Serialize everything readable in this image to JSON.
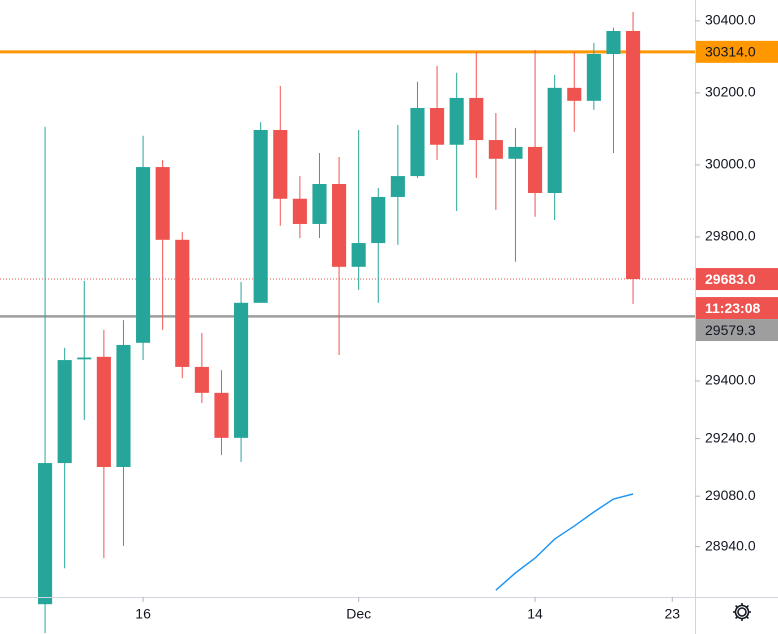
{
  "chart_data": {
    "type": "candlestick",
    "up_color": "#26a69a",
    "down_color": "#ef5350",
    "xlim": [
      -2.3,
      33.16
    ],
    "xticks": [
      {
        "value": 5,
        "label": "16"
      },
      {
        "value": 16,
        "label": "Dec"
      },
      {
        "value": 25,
        "label": "14"
      },
      {
        "value": 32,
        "label": "23"
      }
    ],
    "ylim": [
      28800,
      30458
    ],
    "yticks": [
      {
        "value": 30400,
        "label": "30400.0"
      },
      {
        "value": 30200,
        "label": "30200.0"
      },
      {
        "value": 30000,
        "label": "30000.0"
      },
      {
        "value": 29800,
        "label": "29800.0"
      },
      {
        "value": 29400,
        "label": "29400.0"
      },
      {
        "value": 29240,
        "label": "29240.0"
      },
      {
        "value": 29080,
        "label": "29080.0"
      },
      {
        "value": 28940,
        "label": "28940.0"
      }
    ],
    "open": [
      28780,
      29172,
      29460,
      29467,
      29161,
      29506,
      29994,
      29792,
      29439,
      29367,
      29242,
      29617,
      30097,
      29906,
      29836,
      29947,
      29717,
      29783,
      29911,
      29969,
      30158,
      30056,
      30186,
      30069,
      30017,
      30050,
      29922,
      30214,
      30178,
      30308,
      30372
    ],
    "high": [
      30106,
      29492,
      29678,
      29542,
      29569,
      30081,
      30014,
      29814,
      29533,
      29430,
      29675,
      30119,
      30219,
      29969,
      30033,
      30022,
      30097,
      29936,
      30111,
      30231,
      30275,
      30256,
      30314,
      30144,
      30103,
      30319,
      30250,
      30314,
      30339,
      30381,
      30425
    ],
    "low": [
      28700,
      28880,
      29292,
      28908,
      28942,
      29458,
      29542,
      29408,
      29339,
      29194,
      29175,
      29617,
      29831,
      29797,
      29797,
      29472,
      29653,
      29617,
      29778,
      29964,
      30014,
      29872,
      29964,
      29875,
      29731,
      29856,
      29847,
      30092,
      30153,
      30033,
      29614
    ],
    "close": [
      29172,
      29458,
      29465,
      29161,
      29500,
      29994,
      29792,
      29439,
      29367,
      29242,
      29617,
      30097,
      29906,
      29836,
      29947,
      29717,
      29783,
      29911,
      29969,
      30158,
      30056,
      30186,
      30069,
      30017,
      30050,
      29922,
      30214,
      30178,
      30308,
      30372,
      29683
    ],
    "line": {
      "color": "#2196f3",
      "values": [
        null,
        null,
        null,
        null,
        null,
        null,
        null,
        null,
        null,
        null,
        null,
        null,
        null,
        null,
        null,
        null,
        null,
        null,
        null,
        null,
        null,
        null,
        null,
        28819,
        28867,
        28908,
        28961,
        28997,
        29036,
        29072,
        29086
      ]
    },
    "hlines": [
      {
        "value": 30314,
        "label": "30314.0",
        "color": "#ff9800"
      },
      {
        "value": 29579.3,
        "label": "29579.3",
        "color": "#9e9e9e"
      }
    ],
    "last_price": {
      "value": 29683,
      "label": "29683.0",
      "countdown": "11:23:08",
      "color": "#ef5350"
    }
  }
}
